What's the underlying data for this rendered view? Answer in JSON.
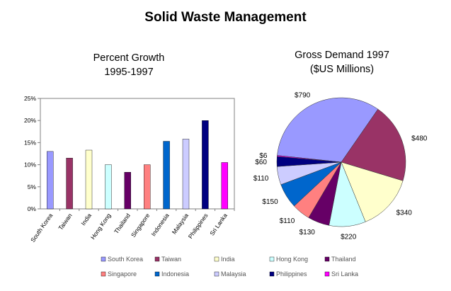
{
  "title": "Solid Waste Management",
  "chart_data": [
    {
      "type": "bar",
      "title_lines": [
        "Percent Growth",
        "1995-1997"
      ],
      "categories": [
        "South Korea",
        "Taiwan",
        "India",
        "Hong Kong",
        "Thailand",
        "Singapore",
        "Indonesia",
        "Malaysia",
        "Philippines",
        "Sri Lanka"
      ],
      "values": [
        13,
        11.5,
        13.3,
        10,
        8.3,
        10,
        15.3,
        15.8,
        20,
        10.5
      ],
      "colors": [
        "#9999ff",
        "#993366",
        "#ffffcc",
        "#ccffff",
        "#660066",
        "#ff8080",
        "#0066cc",
        "#ccccff",
        "#000080",
        "#ff00ff"
      ],
      "ylim": [
        0,
        25
      ],
      "yticks": [
        "0%",
        "5%",
        "10%",
        "15%",
        "20%",
        "25%"
      ],
      "ytick_values": [
        0,
        5,
        10,
        15,
        20,
        25
      ],
      "grid": false
    },
    {
      "type": "pie",
      "title_lines": [
        "Gross Demand 1997",
        "($US Millions)"
      ],
      "labels": [
        "South Korea",
        "Taiwan",
        "India",
        "Hong Kong",
        "Thailand",
        "Singapore",
        "Indonesia",
        "Malaysia",
        "Philippines",
        "Sri Lanka"
      ],
      "values": [
        790,
        480,
        340,
        220,
        130,
        110,
        150,
        110,
        60,
        6
      ],
      "value_labels": [
        "$790",
        "$480",
        "$340",
        "$220",
        "$130",
        "$110",
        "$150",
        "$110",
        "$60",
        "$6"
      ],
      "colors": [
        "#9999ff",
        "#993366",
        "#ffffcc",
        "#ccffff",
        "#660066",
        "#ff8080",
        "#0066cc",
        "#ccccff",
        "#000080",
        "#ff00ff"
      ]
    }
  ],
  "legend": {
    "placement": "bottom",
    "items": [
      "South Korea",
      "Taiwan",
      "India",
      "Hong Kong",
      "Thailand",
      "Singapore",
      "Indonesia",
      "Malaysia",
      "Philippines",
      "Sri Lanka"
    ]
  }
}
